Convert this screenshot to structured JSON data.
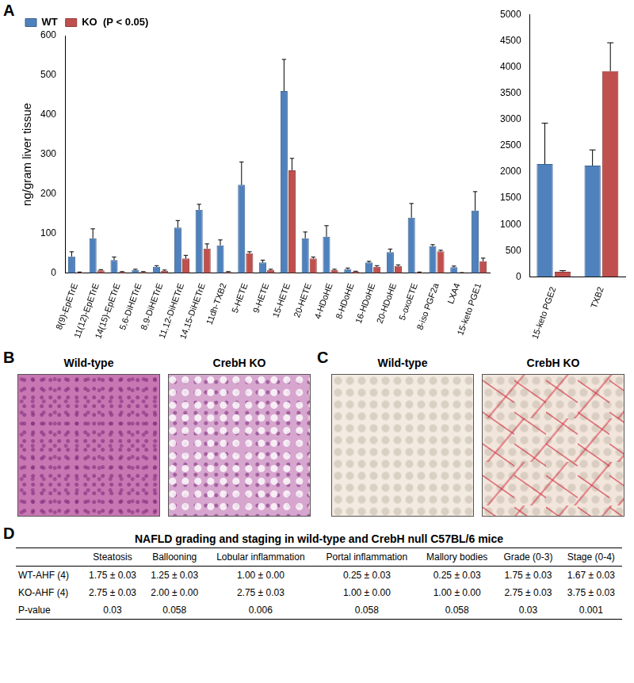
{
  "panel_labels": [
    "A",
    "B",
    "C",
    "D"
  ],
  "chart_data": [
    {
      "type": "bar",
      "y_label": "ng/gram liver tissue",
      "categories": [
        "8(9)-EpETrE",
        "11(12)-EpETrE",
        "14(15)-EpETrE",
        "5,6-DiHETrE",
        "8,9-DiHETrE",
        "11,12-DiHETrE",
        "14,15-DiHETrE",
        "11dh-TXB2",
        "5-HETE",
        "9-HETE",
        "15-HETE",
        "20-HETE",
        "4-HDoHE",
        "8-HDoHE",
        "16-HDoHE",
        "20-HDoHE",
        "5-oxoETE",
        "8-iso PGF2a",
        "LXA4",
        "15-keto PGE1"
      ],
      "series": [
        {
          "name": "WT",
          "color": "#4f81bd",
          "values": [
            42,
            88,
            33,
            8,
            16,
            115,
            160,
            70,
            223,
            27,
            460,
            88,
            92,
            10,
            27,
            53,
            140,
            68,
            15,
            158
          ],
          "errors": [
            12,
            24,
            8,
            2,
            3,
            18,
            14,
            14,
            58,
            6,
            80,
            16,
            28,
            3,
            3,
            8,
            36,
            4,
            3,
            48
          ]
        },
        {
          "name": "KO  (P < 0.05)",
          "color": "#c0504d",
          "values": [
            2,
            7,
            3,
            3,
            6,
            37,
            62,
            3,
            50,
            8,
            260,
            37,
            8,
            4,
            16,
            18,
            2,
            55,
            1,
            30
          ],
          "errors": [
            1,
            2,
            1,
            1,
            2,
            8,
            12,
            1,
            4,
            2,
            30,
            4,
            2,
            1,
            3,
            3,
            1,
            3,
            0.5,
            8
          ]
        }
      ],
      "ylim": [
        0,
        600
      ],
      "yticks": [
        0,
        100,
        200,
        300,
        400,
        500,
        600
      ],
      "grid": false,
      "legend": "upper left"
    },
    {
      "type": "bar",
      "categories": [
        "15-keto PGE2",
        "TXB2"
      ],
      "series": [
        {
          "name": "WT",
          "color": "#4f81bd",
          "values": [
            2150,
            2120
          ],
          "errors": [
            780,
            300
          ]
        },
        {
          "name": "KO  (P < 0.05)",
          "color": "#c0504d",
          "values": [
            100,
            3920
          ],
          "errors": [
            20,
            540
          ]
        }
      ],
      "ylim": [
        0,
        5000
      ],
      "yticks": [
        0,
        500,
        1000,
        1500,
        2000,
        2500,
        3000,
        3500,
        4000,
        4500,
        5000
      ],
      "grid": false
    }
  ],
  "images": [
    {
      "panel": "B",
      "titles": [
        "Wild-type",
        "CrebH KO"
      ]
    },
    {
      "panel": "C",
      "titles": [
        "Wild-type",
        "CrebH KO"
      ]
    }
  ],
  "table": {
    "panel": "D",
    "title": "NAFLD grading and staging in wild-type and CrebH null C57BL/6 mice",
    "header": [
      "",
      "Steatosis",
      "Ballooning",
      "Lobular inflammation",
      "Portal inflammation",
      "Mallory bodies",
      "Grade (0-3)",
      "Stage (0-4)"
    ],
    "rows": [
      [
        "WT-AHF (4)",
        "1.75 ± 0.03",
        "1.25 ± 0.03",
        "1.00 ± 0.00",
        "0.25 ± 0.03",
        "0.25 ± 0.03",
        "1.75 ± 0.03",
        "1.67 ± 0.03"
      ],
      [
        "KO-AHF (4)",
        "2.75 ± 0.03",
        "2.00 ± 0.00",
        "2.75 ± 0.03",
        "1.00 ± 0.00",
        "1.00 ± 0.00",
        "2.75 ± 0.03",
        "3.75 ± 0.03"
      ],
      [
        "P-value",
        "0.03",
        "0.058",
        "0.006",
        "0.058",
        "0.058",
        "0.03",
        "0.001"
      ]
    ]
  }
}
